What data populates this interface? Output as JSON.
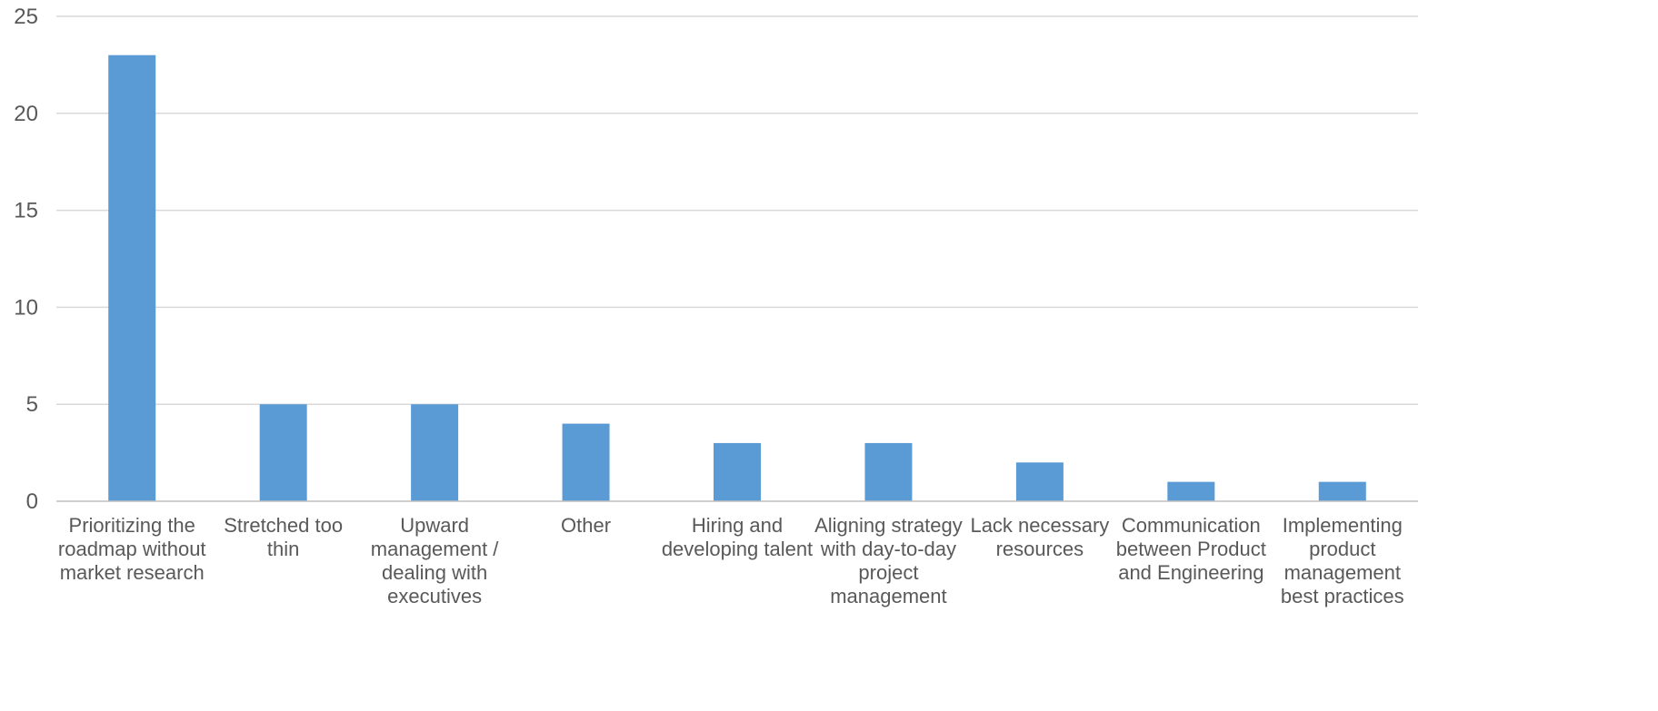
{
  "chart_data": {
    "type": "bar",
    "title": "",
    "xlabel": "",
    "ylabel": "",
    "ylim": [
      0,
      25
    ],
    "y_ticks": [
      0,
      5,
      10,
      15,
      20,
      25
    ],
    "grid": true,
    "legend": "none",
    "bar_color": "#5b9bd5",
    "categories": [
      "Prioritizing the roadmap without market research",
      "Stretched too thin",
      "Upward management / dealing with executives",
      "Other",
      "Hiring and developing talent",
      "Aligning strategy with day-to-day project management",
      "Lack necessary resources",
      "Communication between Product and Engineering",
      "Implementing product management best practices"
    ],
    "category_label_lines": [
      [
        "Prioritizing the",
        "roadmap without",
        "market research"
      ],
      [
        "Stretched too",
        "thin"
      ],
      [
        "Upward",
        "management /",
        "dealing with",
        "executives"
      ],
      [
        "Other"
      ],
      [
        "Hiring and",
        "developing talent"
      ],
      [
        "Aligning strategy",
        "with day-to-day",
        "project",
        "management"
      ],
      [
        "Lack necessary",
        "resources"
      ],
      [
        "Communication",
        "between Product",
        "and Engineering"
      ],
      [
        "Implementing",
        "product",
        "management",
        "best practices"
      ]
    ],
    "values": [
      23,
      5,
      5,
      4,
      3,
      3,
      2,
      1,
      1
    ]
  }
}
